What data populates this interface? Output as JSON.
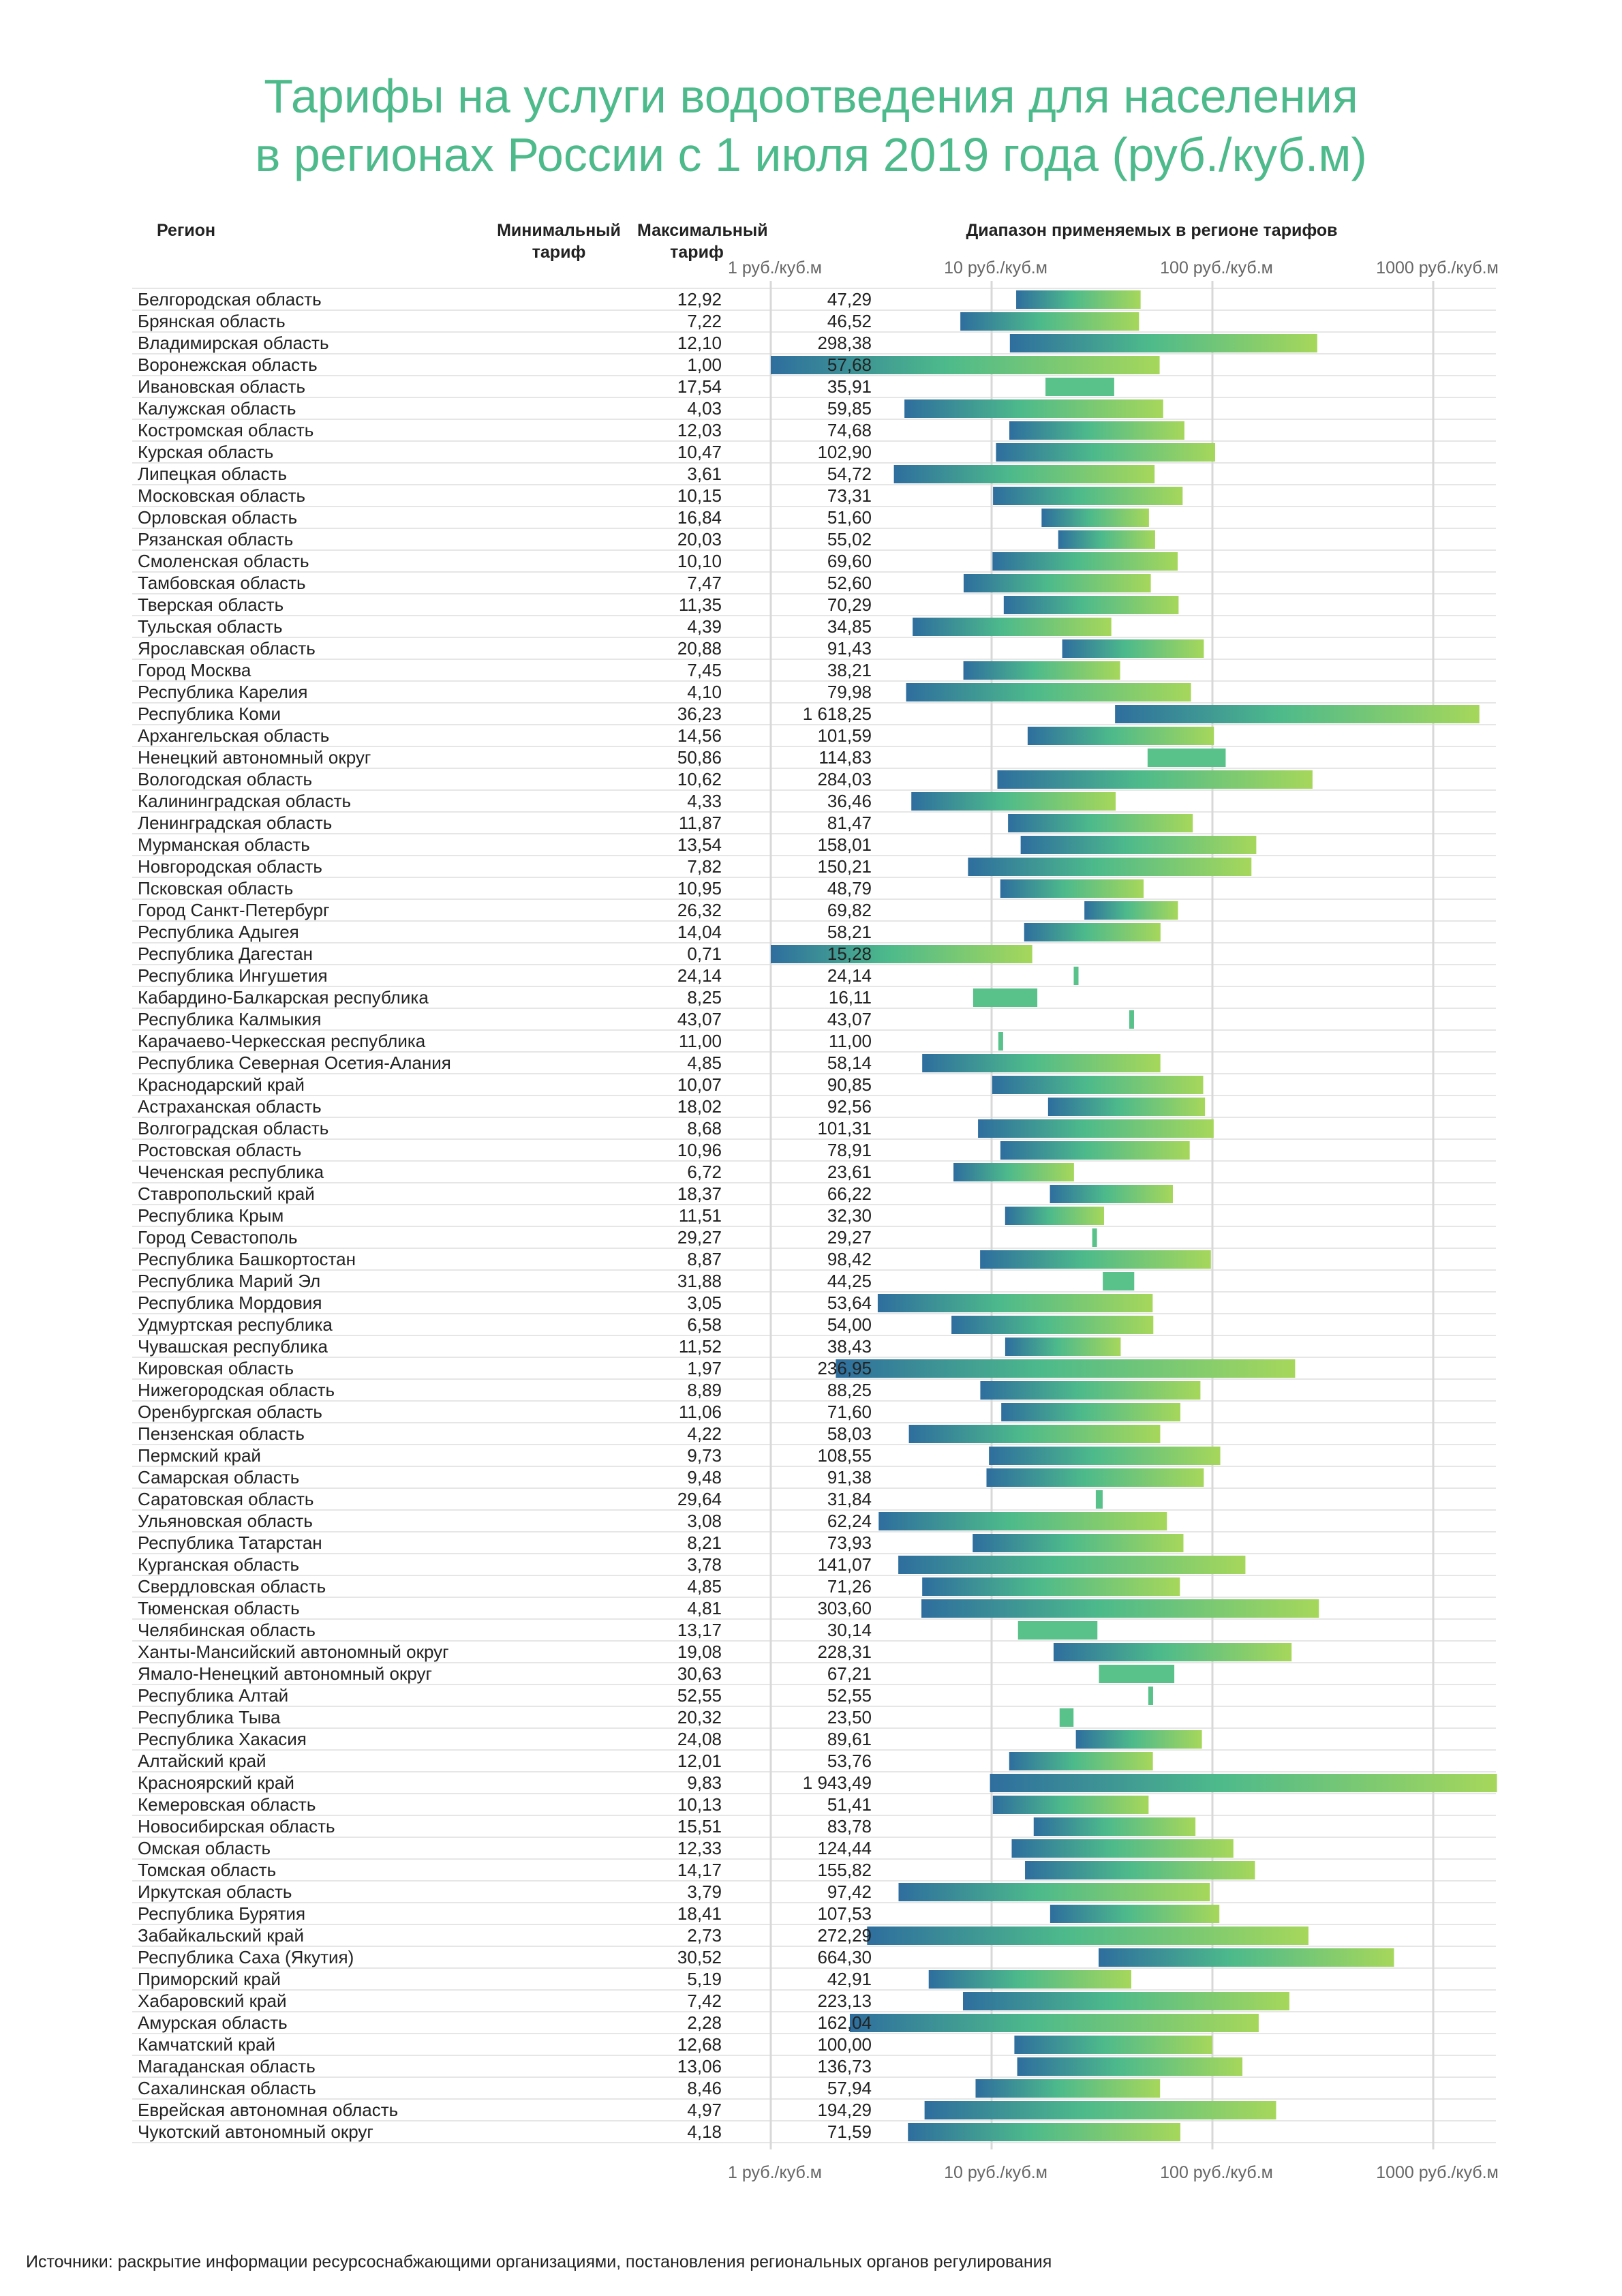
{
  "title_lines": [
    "Тарифы на услуги водоотведения для населения",
    "в регионах России с 1 июля 2019 года (руб./куб.м)"
  ],
  "headers": {
    "region": "Регион",
    "min_line1": "Минимальный",
    "min_line2": "тариф",
    "max_line1": "Максимальный",
    "max_line2": "тариф",
    "range": "Диапазон применяемых в регионе тарифов"
  },
  "axis_ticks": [
    "1 руб./куб.м",
    "10 руб./куб.м",
    "100 руб./куб.м",
    "1000 руб./куб.м"
  ],
  "source": "Источники: раскрытие информации ресурсоснабжающими организациями, постановления региональных органов регулирования",
  "colors": {
    "title": "#4dba8b",
    "bar_dark": "#2e6e9e",
    "bar_mid": "#4dba8b",
    "bar_light": "#a6d75b",
    "grid": "#dddddd"
  },
  "chart_data": {
    "type": "range-bar",
    "scale": "log",
    "xlim": [
      1,
      2000
    ],
    "rows": [
      {
        "region": "Белгородская область",
        "min_label": "12,92",
        "max_label": "47,29",
        "min": 12.92,
        "max": 47.29
      },
      {
        "region": "Брянская область",
        "min_label": "7,22",
        "max_label": "46,52",
        "min": 7.22,
        "max": 46.52
      },
      {
        "region": "Владимирская область",
        "min_label": "12,10",
        "max_label": "298,38",
        "min": 12.1,
        "max": 298.38
      },
      {
        "region": "Воронежская область",
        "min_label": "1,00",
        "max_label": "57,68",
        "min": 1.0,
        "max": 57.68
      },
      {
        "region": "Ивановская область",
        "min_label": "17,54",
        "max_label": "35,91",
        "min": 17.54,
        "max": 35.91
      },
      {
        "region": "Калужская область",
        "min_label": "4,03",
        "max_label": "59,85",
        "min": 4.03,
        "max": 59.85
      },
      {
        "region": "Костромская область",
        "min_label": "12,03",
        "max_label": "74,68",
        "min": 12.03,
        "max": 74.68
      },
      {
        "region": "Курская область",
        "min_label": "10,47",
        "max_label": "102,90",
        "min": 10.47,
        "max": 102.9
      },
      {
        "region": "Липецкая область",
        "min_label": "3,61",
        "max_label": "54,72",
        "min": 3.61,
        "max": 54.72
      },
      {
        "region": "Московская область",
        "min_label": "10,15",
        "max_label": "73,31",
        "min": 10.15,
        "max": 73.31
      },
      {
        "region": "Орловская область",
        "min_label": "16,84",
        "max_label": "51,60",
        "min": 16.84,
        "max": 51.6
      },
      {
        "region": "Рязанская область",
        "min_label": "20,03",
        "max_label": "55,02",
        "min": 20.03,
        "max": 55.02
      },
      {
        "region": "Смоленская область",
        "min_label": "10,10",
        "max_label": "69,60",
        "min": 10.1,
        "max": 69.6
      },
      {
        "region": "Тамбовская область",
        "min_label": "7,47",
        "max_label": "52,60",
        "min": 7.47,
        "max": 52.6
      },
      {
        "region": "Тверская область",
        "min_label": "11,35",
        "max_label": "70,29",
        "min": 11.35,
        "max": 70.29
      },
      {
        "region": "Тульская область",
        "min_label": "4,39",
        "max_label": "34,85",
        "min": 4.39,
        "max": 34.85
      },
      {
        "region": "Ярославская область",
        "min_label": "20,88",
        "max_label": "91,43",
        "min": 20.88,
        "max": 91.43
      },
      {
        "region": "Город Москва",
        "min_label": "7,45",
        "max_label": "38,21",
        "min": 7.45,
        "max": 38.21
      },
      {
        "region": "Республика Карелия",
        "min_label": "4,10",
        "max_label": "79,98",
        "min": 4.1,
        "max": 79.98
      },
      {
        "region": "Республика Коми",
        "min_label": "36,23",
        "max_label": "1 618,25",
        "min": 36.23,
        "max": 1618.25
      },
      {
        "region": "Архангельская область",
        "min_label": "14,56",
        "max_label": "101,59",
        "min": 14.56,
        "max": 101.59
      },
      {
        "region": "Ненецкий автономный округ",
        "min_label": "50,86",
        "max_label": "114,83",
        "min": 50.86,
        "max": 114.83
      },
      {
        "region": "Вологодская область",
        "min_label": "10,62",
        "max_label": "284,03",
        "min": 10.62,
        "max": 284.03
      },
      {
        "region": "Калининградская область",
        "min_label": "4,33",
        "max_label": "36,46",
        "min": 4.33,
        "max": 36.46
      },
      {
        "region": "Ленинградская область",
        "min_label": "11,87",
        "max_label": "81,47",
        "min": 11.87,
        "max": 81.47
      },
      {
        "region": "Мурманская область",
        "min_label": "13,54",
        "max_label": "158,01",
        "min": 13.54,
        "max": 158.01
      },
      {
        "region": "Новгородская область",
        "min_label": "7,82",
        "max_label": "150,21",
        "min": 7.82,
        "max": 150.21
      },
      {
        "region": "Псковская область",
        "min_label": "10,95",
        "max_label": "48,79",
        "min": 10.95,
        "max": 48.79
      },
      {
        "region": "Город Санкт-Петербург",
        "min_label": "26,32",
        "max_label": "69,82",
        "min": 26.32,
        "max": 69.82
      },
      {
        "region": "Республика Адыгея",
        "min_label": "14,04",
        "max_label": "58,21",
        "min": 14.04,
        "max": 58.21
      },
      {
        "region": "Республика Дагестан",
        "min_label": "0,71",
        "max_label": "15,28",
        "min": 0.71,
        "max": 15.28
      },
      {
        "region": "Республика Ингушетия",
        "min_label": "24,14",
        "max_label": "24,14",
        "min": 24.14,
        "max": 24.14
      },
      {
        "region": "Кабардино-Балкарская республика",
        "min_label": "8,25",
        "max_label": "16,11",
        "min": 8.25,
        "max": 16.11
      },
      {
        "region": "Республика Калмыкия",
        "min_label": "43,07",
        "max_label": "43,07",
        "min": 43.07,
        "max": 43.07
      },
      {
        "region": "Карачаево-Черкесская республика",
        "min_label": "11,00",
        "max_label": "11,00",
        "min": 11.0,
        "max": 11.0
      },
      {
        "region": "Республика Северная Осетия-Алания",
        "min_label": "4,85",
        "max_label": "58,14",
        "min": 4.85,
        "max": 58.14
      },
      {
        "region": "Краснодарский край",
        "min_label": "10,07",
        "max_label": "90,85",
        "min": 10.07,
        "max": 90.85
      },
      {
        "region": "Астраханская область",
        "min_label": "18,02",
        "max_label": "92,56",
        "min": 18.02,
        "max": 92.56
      },
      {
        "region": "Волгоградская область",
        "min_label": "8,68",
        "max_label": "101,31",
        "min": 8.68,
        "max": 101.31
      },
      {
        "region": "Ростовская область",
        "min_label": "10,96",
        "max_label": "78,91",
        "min": 10.96,
        "max": 78.91
      },
      {
        "region": "Чеченская республика",
        "min_label": "6,72",
        "max_label": "23,61",
        "min": 6.72,
        "max": 23.61
      },
      {
        "region": "Ставропольский край",
        "min_label": "18,37",
        "max_label": "66,22",
        "min": 18.37,
        "max": 66.22
      },
      {
        "region": "Республика Крым",
        "min_label": "11,51",
        "max_label": "32,30",
        "min": 11.51,
        "max": 32.3
      },
      {
        "region": "Город Севастополь",
        "min_label": "29,27",
        "max_label": "29,27",
        "min": 29.27,
        "max": 29.27
      },
      {
        "region": "Республика Башкортостан",
        "min_label": "8,87",
        "max_label": "98,42",
        "min": 8.87,
        "max": 98.42
      },
      {
        "region": "Республика Марий Эл",
        "min_label": "31,88",
        "max_label": "44,25",
        "min": 31.88,
        "max": 44.25
      },
      {
        "region": "Республика Мордовия",
        "min_label": "3,05",
        "max_label": "53,64",
        "min": 3.05,
        "max": 53.64
      },
      {
        "region": "Удмуртская республика",
        "min_label": "6,58",
        "max_label": "54,00",
        "min": 6.58,
        "max": 54.0
      },
      {
        "region": "Чувашская республика",
        "min_label": "11,52",
        "max_label": "38,43",
        "min": 11.52,
        "max": 38.43
      },
      {
        "region": "Кировская область",
        "min_label": "1,97",
        "max_label": "236,95",
        "min": 1.97,
        "max": 236.95
      },
      {
        "region": "Нижегородская область",
        "min_label": "8,89",
        "max_label": "88,25",
        "min": 8.89,
        "max": 88.25
      },
      {
        "region": "Оренбургская область",
        "min_label": "11,06",
        "max_label": "71,60",
        "min": 11.06,
        "max": 71.6
      },
      {
        "region": "Пензенская область",
        "min_label": "4,22",
        "max_label": "58,03",
        "min": 4.22,
        "max": 58.03
      },
      {
        "region": "Пермский край",
        "min_label": "9,73",
        "max_label": "108,55",
        "min": 9.73,
        "max": 108.55
      },
      {
        "region": "Самарская область",
        "min_label": "9,48",
        "max_label": "91,38",
        "min": 9.48,
        "max": 91.38
      },
      {
        "region": "Саратовская область",
        "min_label": "29,64",
        "max_label": "31,84",
        "min": 29.64,
        "max": 31.84
      },
      {
        "region": "Ульяновская область",
        "min_label": "3,08",
        "max_label": "62,24",
        "min": 3.08,
        "max": 62.24
      },
      {
        "region": "Республика Татарстан",
        "min_label": "8,21",
        "max_label": "73,93",
        "min": 8.21,
        "max": 73.93
      },
      {
        "region": "Курганская область",
        "min_label": "3,78",
        "max_label": "141,07",
        "min": 3.78,
        "max": 141.07
      },
      {
        "region": "Свердловская область",
        "min_label": "4,85",
        "max_label": "71,26",
        "min": 4.85,
        "max": 71.26
      },
      {
        "region": "Тюменская область",
        "min_label": "4,81",
        "max_label": "303,60",
        "min": 4.81,
        "max": 303.6
      },
      {
        "region": "Челябинская область",
        "min_label": "13,17",
        "max_label": "30,14",
        "min": 13.17,
        "max": 30.14
      },
      {
        "region": "Ханты-Мансийский автономный округ",
        "min_label": "19,08",
        "max_label": "228,31",
        "min": 19.08,
        "max": 228.31
      },
      {
        "region": "Ямало-Ненецкий автономный округ",
        "min_label": "30,63",
        "max_label": "67,21",
        "min": 30.63,
        "max": 67.21
      },
      {
        "region": "Республика Алтай",
        "min_label": "52,55",
        "max_label": "52,55",
        "min": 52.55,
        "max": 52.55
      },
      {
        "region": "Республика Тыва",
        "min_label": "20,32",
        "max_label": "23,50",
        "min": 20.32,
        "max": 23.5
      },
      {
        "region": "Республика Хакасия",
        "min_label": "24,08",
        "max_label": "89,61",
        "min": 24.08,
        "max": 89.61
      },
      {
        "region": "Алтайский край",
        "min_label": "12,01",
        "max_label": "53,76",
        "min": 12.01,
        "max": 53.76
      },
      {
        "region": "Красноярский край",
        "min_label": "9,83",
        "max_label": "1 943,49",
        "min": 9.83,
        "max": 1943.49
      },
      {
        "region": "Кемеровская область",
        "min_label": "10,13",
        "max_label": "51,41",
        "min": 10.13,
        "max": 51.41
      },
      {
        "region": "Новосибирская область",
        "min_label": "15,51",
        "max_label": "83,78",
        "min": 15.51,
        "max": 83.78
      },
      {
        "region": "Омская область",
        "min_label": "12,33",
        "max_label": "124,44",
        "min": 12.33,
        "max": 124.44
      },
      {
        "region": "Томская область",
        "min_label": "14,17",
        "max_label": "155,82",
        "min": 14.17,
        "max": 155.82
      },
      {
        "region": "Иркутская область",
        "min_label": "3,79",
        "max_label": "97,42",
        "min": 3.79,
        "max": 97.42
      },
      {
        "region": "Республика Бурятия",
        "min_label": "18,41",
        "max_label": "107,53",
        "min": 18.41,
        "max": 107.53
      },
      {
        "region": "Забайкальский край",
        "min_label": "2,73",
        "max_label": "272,29",
        "min": 2.73,
        "max": 272.29
      },
      {
        "region": "Республика Саха (Якутия)",
        "min_label": "30,52",
        "max_label": "664,30",
        "min": 30.52,
        "max": 664.3
      },
      {
        "region": "Приморский край",
        "min_label": "5,19",
        "max_label": "42,91",
        "min": 5.19,
        "max": 42.91
      },
      {
        "region": "Хабаровский край",
        "min_label": "7,42",
        "max_label": "223,13",
        "min": 7.42,
        "max": 223.13
      },
      {
        "region": "Амурская область",
        "min_label": "2,28",
        "max_label": "162,04",
        "min": 2.28,
        "max": 162.04
      },
      {
        "region": "Камчатский край",
        "min_label": "12,68",
        "max_label": "100,00",
        "min": 12.68,
        "max": 100.0
      },
      {
        "region": "Магаданская область",
        "min_label": "13,06",
        "max_label": "136,73",
        "min": 13.06,
        "max": 136.73
      },
      {
        "region": "Сахалинская область",
        "min_label": "8,46",
        "max_label": "57,94",
        "min": 8.46,
        "max": 57.94
      },
      {
        "region": "Еврейская автономная область",
        "min_label": "4,97",
        "max_label": "194,29",
        "min": 4.97,
        "max": 194.29
      },
      {
        "region": "Чукотский автономный округ",
        "min_label": "4,18",
        "max_label": "71,59",
        "min": 4.18,
        "max": 71.59
      }
    ]
  }
}
